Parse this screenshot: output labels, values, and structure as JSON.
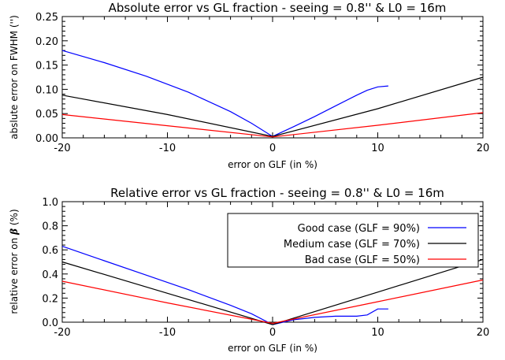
{
  "chart_data": [
    {
      "type": "line",
      "title": "Absolute error vs GL fraction - seeing = 0.8'' & L0 = 16m",
      "xlabel": "error on GLF (in %)",
      "ylabel": "abslute error on FWHM ('')",
      "xlim": [
        -20,
        20
      ],
      "ylim": [
        0,
        0.25
      ],
      "xticks": [
        "-20",
        "-10",
        "0",
        "10",
        "20"
      ],
      "yticks": [
        "0.00",
        "0.05",
        "0.10",
        "0.15",
        "0.20",
        "0.25"
      ],
      "grid": false,
      "series": [
        {
          "color": "#0000ff",
          "x": [
            -20,
            -16,
            -12,
            -8,
            -4,
            -2,
            0,
            2,
            4,
            6,
            8,
            9,
            10,
            11
          ],
          "y": [
            0.18,
            0.155,
            0.127,
            0.094,
            0.054,
            0.03,
            0.003,
            0.023,
            0.044,
            0.066,
            0.088,
            0.098,
            0.105,
            0.107
          ]
        },
        {
          "color": "#000000",
          "x": [
            -20,
            -10,
            0,
            10,
            20
          ],
          "y": [
            0.088,
            0.048,
            0.003,
            0.06,
            0.125
          ]
        },
        {
          "color": "#ff0000",
          "x": [
            -20,
            -10,
            0,
            10,
            20
          ],
          "y": [
            0.048,
            0.025,
            0.002,
            0.026,
            0.052
          ]
        }
      ]
    },
    {
      "type": "line",
      "title": "Relative error vs GL fraction - seeing = 0.8'' & L0 = 16m",
      "xlabel": "error on GLF (in %)",
      "ylabel_prefix": "relative error on ",
      "ylabel_symbol": "β",
      "ylabel_suffix": " (%)",
      "xlim": [
        -20,
        20
      ],
      "ylim": [
        0,
        1.0
      ],
      "xticks": [
        "-20",
        "-10",
        "0",
        "10",
        "20"
      ],
      "yticks": [
        "0.0",
        "0.2",
        "0.4",
        "0.6",
        "0.8",
        "1.0"
      ],
      "grid": false,
      "legend_position": "top-right",
      "series": [
        {
          "name": "Good case (GLF = 90%)",
          "color": "#0000ff",
          "x": [
            -20,
            -16,
            -12,
            -8,
            -4,
            -2,
            0,
            2,
            4,
            6,
            8,
            9,
            10,
            11
          ],
          "y": [
            0.63,
            0.51,
            0.39,
            0.27,
            0.14,
            0.07,
            -0.02,
            0.02,
            0.04,
            0.05,
            0.05,
            0.06,
            0.11,
            0.11
          ]
        },
        {
          "name": "Medium case (GLF = 70%)",
          "color": "#000000",
          "x": [
            -20,
            -10,
            0,
            10,
            20
          ],
          "y": [
            0.5,
            0.24,
            -0.02,
            0.25,
            0.52
          ]
        },
        {
          "name": "Bad case (GLF = 50%)",
          "color": "#ff0000",
          "x": [
            -20,
            -10,
            0,
            10,
            20
          ],
          "y": [
            0.34,
            0.16,
            -0.01,
            0.17,
            0.35
          ]
        }
      ]
    }
  ]
}
